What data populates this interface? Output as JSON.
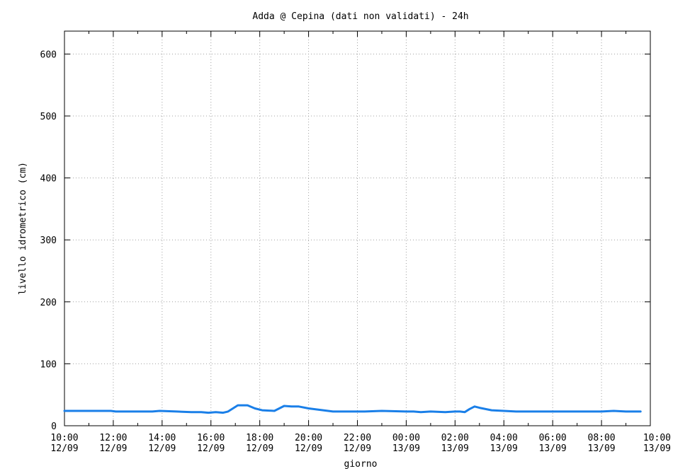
{
  "chart_data": {
    "type": "line",
    "title": "Adda @ Cepina (dati non validati) - 24h",
    "xlabel": "giorno",
    "ylabel": "livello idrometrico (cm)",
    "ylim": [
      0,
      637
    ],
    "yticks": [
      0,
      100,
      200,
      300,
      400,
      500,
      600
    ],
    "xlim_hours": [
      0,
      24
    ],
    "xticks": [
      {
        "hour": 0,
        "time": "10:00",
        "date": "12/09"
      },
      {
        "hour": 2,
        "time": "12:00",
        "date": "12/09"
      },
      {
        "hour": 4,
        "time": "14:00",
        "date": "12/09"
      },
      {
        "hour": 6,
        "time": "16:00",
        "date": "12/09"
      },
      {
        "hour": 8,
        "time": "18:00",
        "date": "12/09"
      },
      {
        "hour": 10,
        "time": "20:00",
        "date": "12/09"
      },
      {
        "hour": 12,
        "time": "22:00",
        "date": "12/09"
      },
      {
        "hour": 14,
        "time": "00:00",
        "date": "13/09"
      },
      {
        "hour": 16,
        "time": "02:00",
        "date": "13/09"
      },
      {
        "hour": 18,
        "time": "04:00",
        "date": "13/09"
      },
      {
        "hour": 20,
        "time": "06:00",
        "date": "13/09"
      },
      {
        "hour": 22,
        "time": "08:00",
        "date": "13/09"
      },
      {
        "hour": 24,
        "time": "10:00",
        "date": "13/09"
      }
    ],
    "grid": true,
    "line_color": "#1a7fe8",
    "series": [
      {
        "name": "",
        "x_hours": [
          0,
          1,
          1.9,
          2.1,
          3,
          3.6,
          3.9,
          4.6,
          5.2,
          5.6,
          5.9,
          6.2,
          6.5,
          6.7,
          7.1,
          7.5,
          7.8,
          8.1,
          8.6,
          9.0,
          9.3,
          9.6,
          10,
          11,
          12,
          12.3,
          13,
          14,
          14.3,
          14.6,
          15,
          15.6,
          16,
          16.2,
          16.4,
          16.6,
          16.8,
          17,
          17.5,
          18,
          18.5,
          19,
          20,
          21,
          22,
          22.5,
          23,
          23.6
        ],
        "y_values": [
          24,
          24,
          24,
          23,
          23,
          23,
          24,
          23,
          22,
          22,
          21,
          22,
          21,
          23,
          33,
          33,
          28,
          25,
          24,
          32,
          31,
          31,
          28,
          23,
          23,
          23,
          24,
          23,
          23,
          22,
          23,
          22,
          23,
          23,
          22,
          27,
          31,
          29,
          25,
          24,
          23,
          23,
          23,
          23,
          23,
          24,
          23,
          23
        ]
      }
    ]
  }
}
